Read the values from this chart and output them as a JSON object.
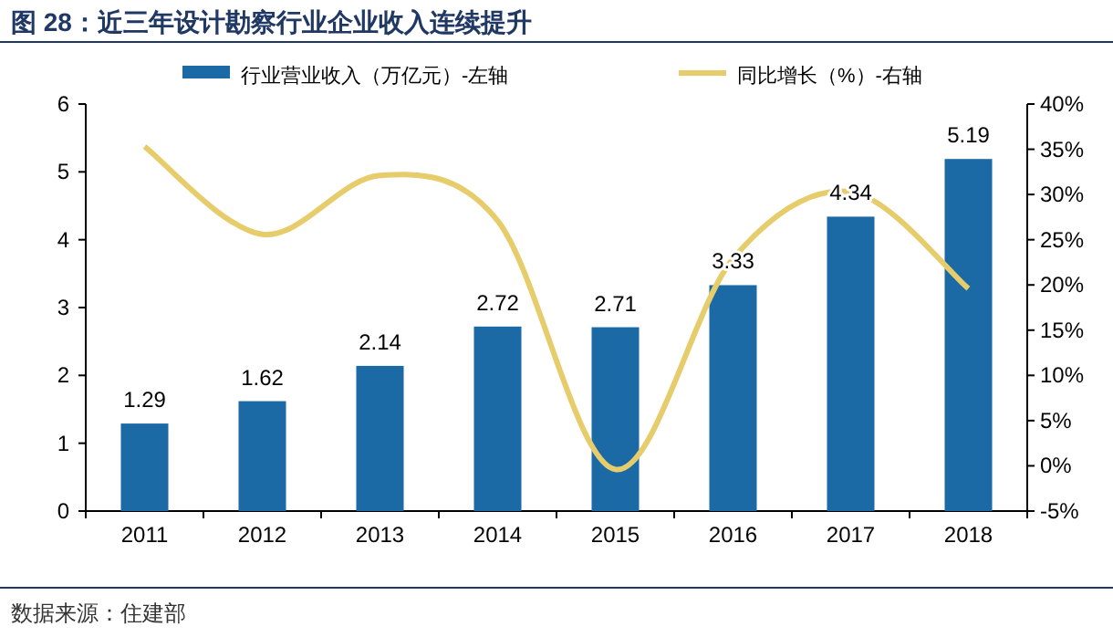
{
  "chart_data": {
    "type": "bar",
    "title": "图 28：近三年设计勘察行业企业收入连续提升",
    "categories": [
      "2011",
      "2012",
      "2013",
      "2014",
      "2015",
      "2016",
      "2017",
      "2018"
    ],
    "series": [
      {
        "name": "行业营业收入（万亿元）-左轴",
        "color": "#1b6aa5",
        "values": [
          1.29,
          1.62,
          2.14,
          2.72,
          2.71,
          3.33,
          4.34,
          5.19
        ],
        "value_labels": [
          "1.29",
          "1.62",
          "2.14",
          "2.72",
          "2.71",
          "3.33",
          "4.34",
          "5.19"
        ]
      },
      {
        "name": "同比增长（%）-右轴",
        "type": "line",
        "axis": "y2",
        "color": "#e6cc6a",
        "values": [
          35.3,
          25.6,
          32.1,
          27.1,
          -0.4,
          22.9,
          30.3,
          19.6
        ]
      }
    ],
    "ylim": [
      0,
      6
    ],
    "yticks": [
      0,
      1,
      2,
      3,
      4,
      5,
      6
    ],
    "y2lim": [
      -5,
      40
    ],
    "y2ticks": [
      {
        "value": -5,
        "label": "-5%"
      },
      {
        "value": 0,
        "label": "0%"
      },
      {
        "value": 5,
        "label": "5%"
      },
      {
        "value": 10,
        "label": "10%"
      },
      {
        "value": 15,
        "label": "15%"
      },
      {
        "value": 20,
        "label": "20%"
      },
      {
        "value": 25,
        "label": "25%"
      },
      {
        "value": 30,
        "label": "30%"
      },
      {
        "value": 35,
        "label": "35%"
      },
      {
        "value": 40,
        "label": "40%"
      }
    ],
    "legend": "top",
    "grid": false,
    "annotations": [
      "数据来源：住建部"
    ]
  }
}
